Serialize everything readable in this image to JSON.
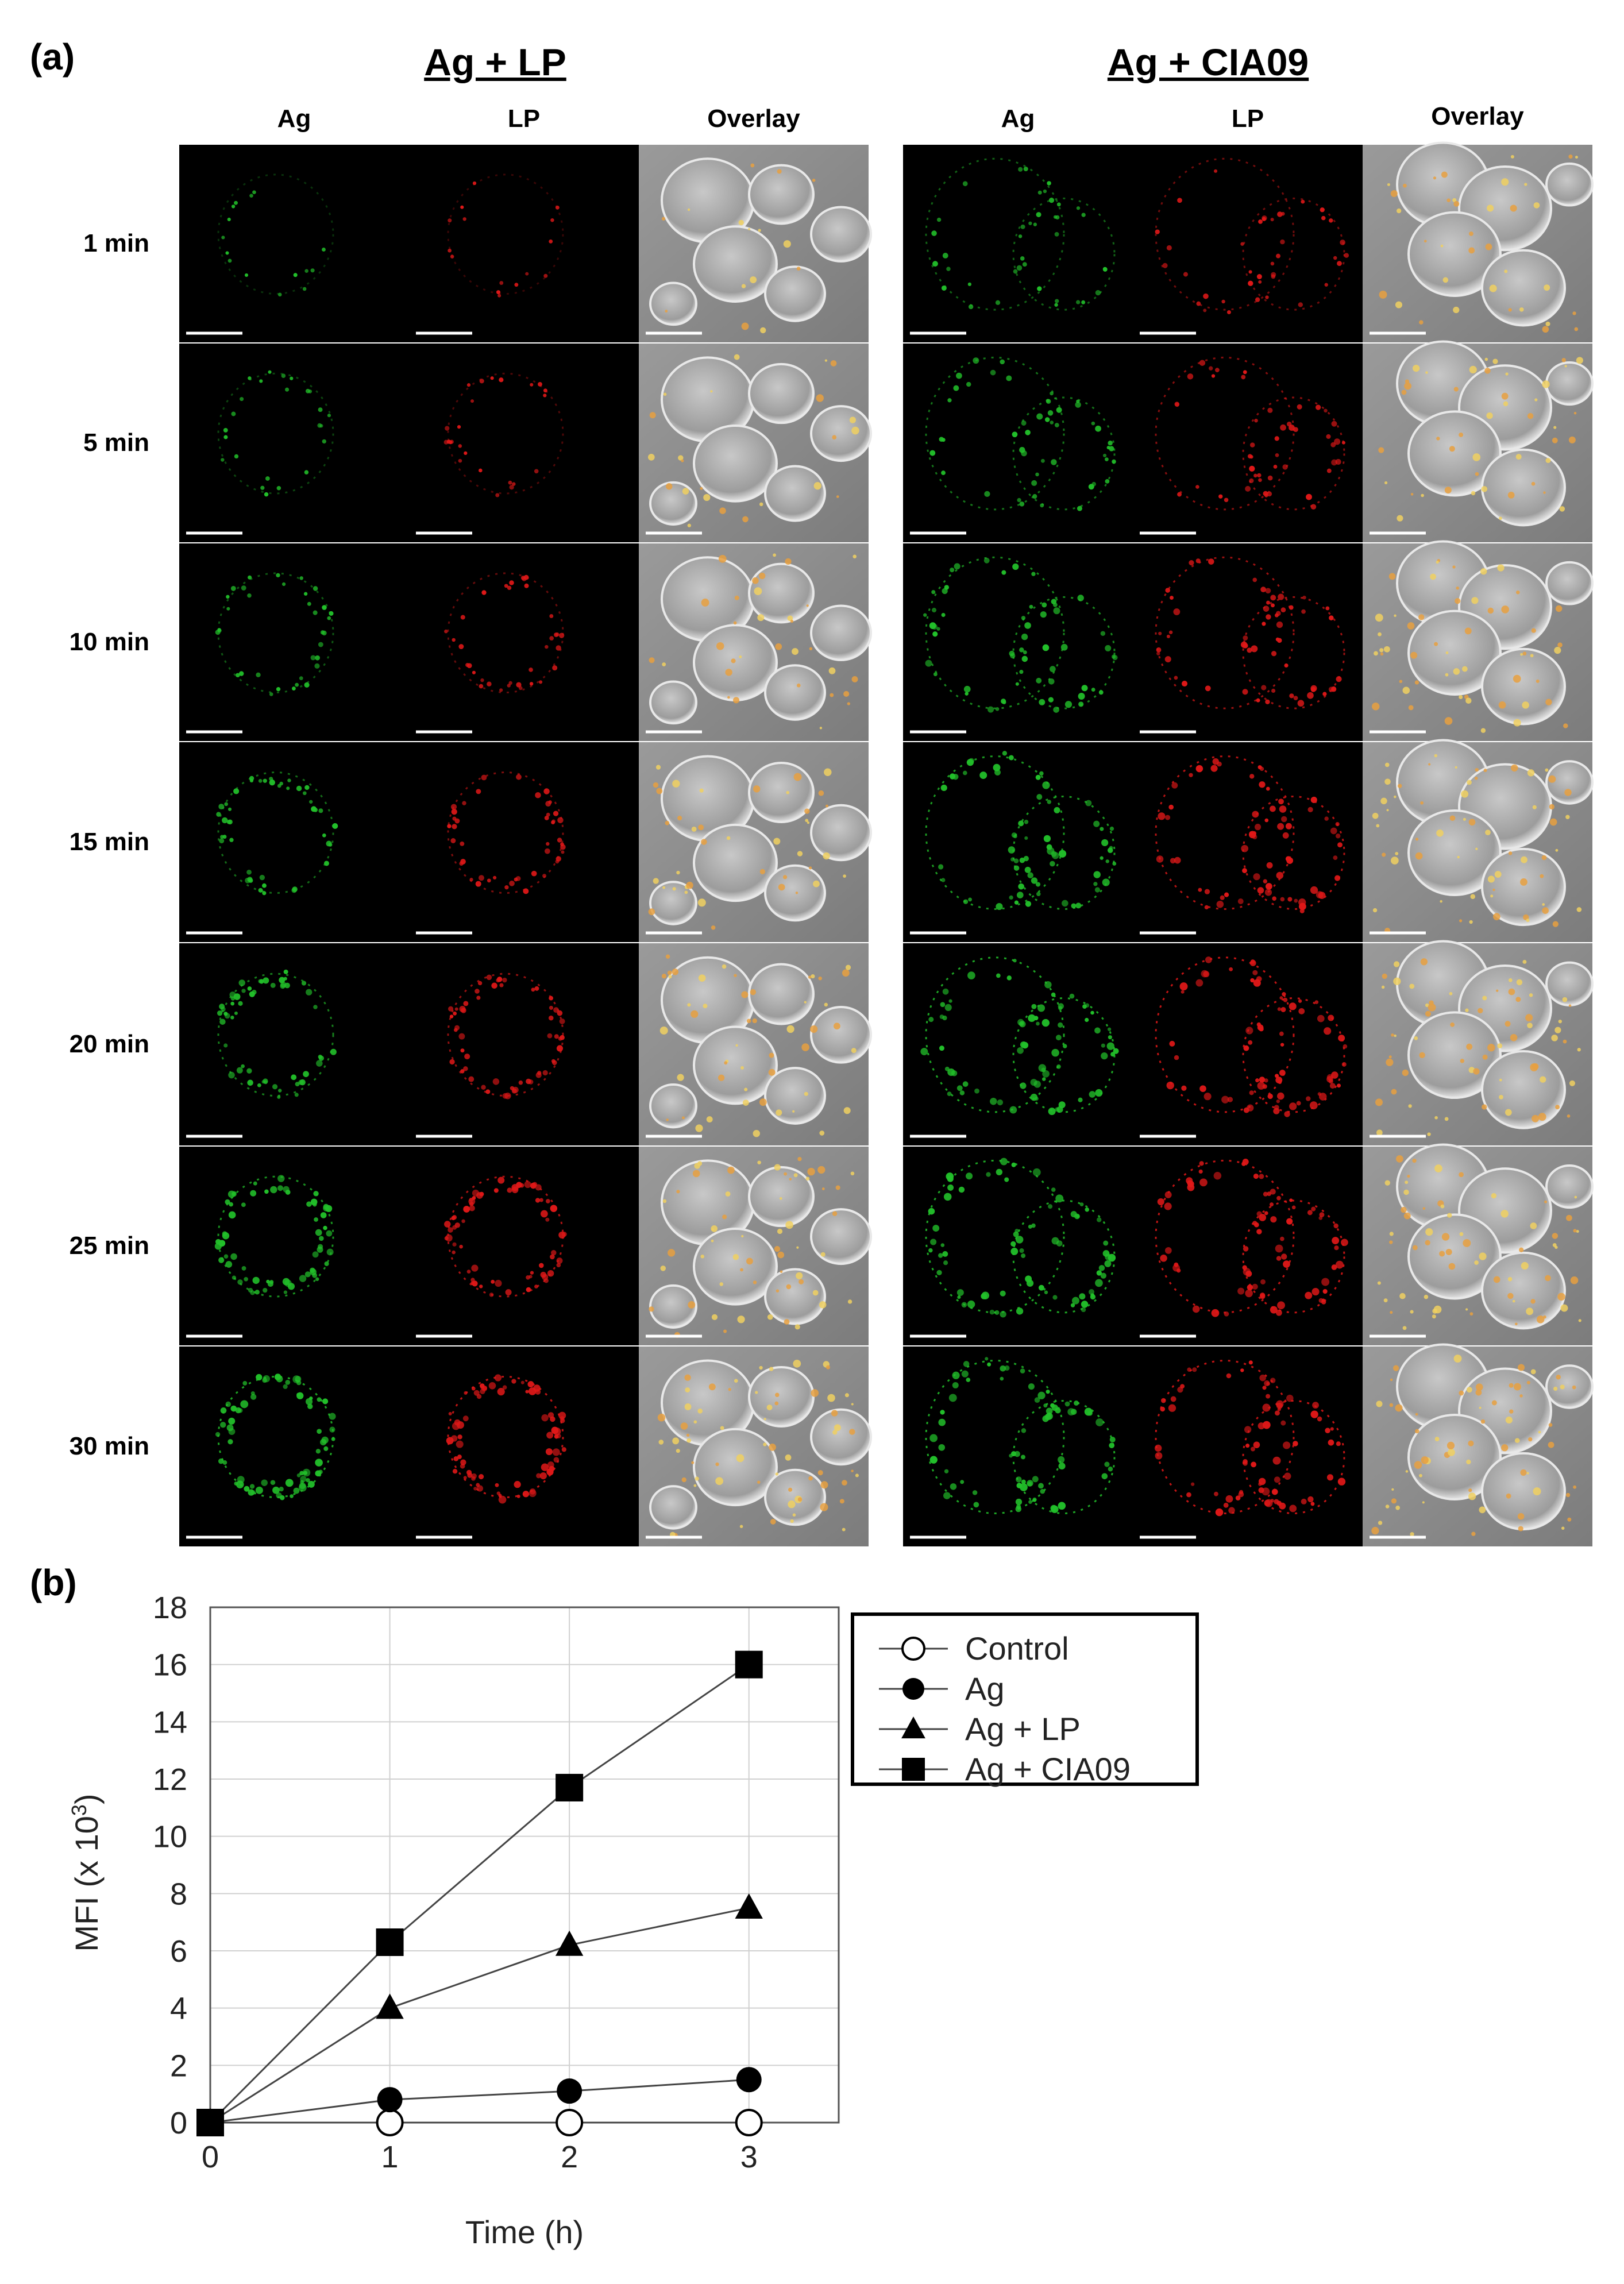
{
  "panel_a": {
    "label": "(a)",
    "groups": [
      {
        "title": "Ag + LP",
        "columns": [
          "Ag",
          "LP",
          "Overlay"
        ]
      },
      {
        "title": "Ag + CIA09",
        "columns": [
          "Ag",
          "LP",
          "Overlay"
        ]
      }
    ],
    "rows": [
      "1 min",
      "5 min",
      "10 min",
      "15 min",
      "20 min",
      "25 min",
      "30 min"
    ],
    "colors": {
      "ag_channel": "#22c02a",
      "lp_channel": "#e01818",
      "overlay_bg": "#8a8a8a",
      "background": "#000000"
    }
  },
  "panel_b": {
    "label": "(b)"
  },
  "chart_data": {
    "type": "line",
    "x": [
      0,
      1,
      2,
      3
    ],
    "xlabel": "Time (h)",
    "ylabel": "MFI (x 10³)",
    "ylabel_main": "MFI (x 10",
    "ylabel_sup": "3",
    "ylabel_close": ")",
    "xlim": [
      0,
      3.5
    ],
    "ylim": [
      0,
      18
    ],
    "xticks": [
      "0",
      "1",
      "2",
      "3"
    ],
    "yticks": [
      "0",
      "2",
      "4",
      "6",
      "8",
      "10",
      "12",
      "14",
      "16",
      "18"
    ],
    "grid": true,
    "legend_position": "right",
    "series": [
      {
        "name": "Control",
        "marker": "open-circle",
        "values": [
          0,
          0,
          0,
          0
        ]
      },
      {
        "name": "Ag",
        "marker": "filled-circle",
        "values": [
          0,
          0.8,
          1.1,
          1.5
        ]
      },
      {
        "name": "Ag + LP",
        "marker": "filled-triangle",
        "values": [
          0,
          4.0,
          6.2,
          7.5
        ]
      },
      {
        "name": "Ag + CIA09",
        "marker": "filled-square",
        "values": [
          0,
          6.3,
          11.7,
          16.0
        ]
      }
    ]
  }
}
